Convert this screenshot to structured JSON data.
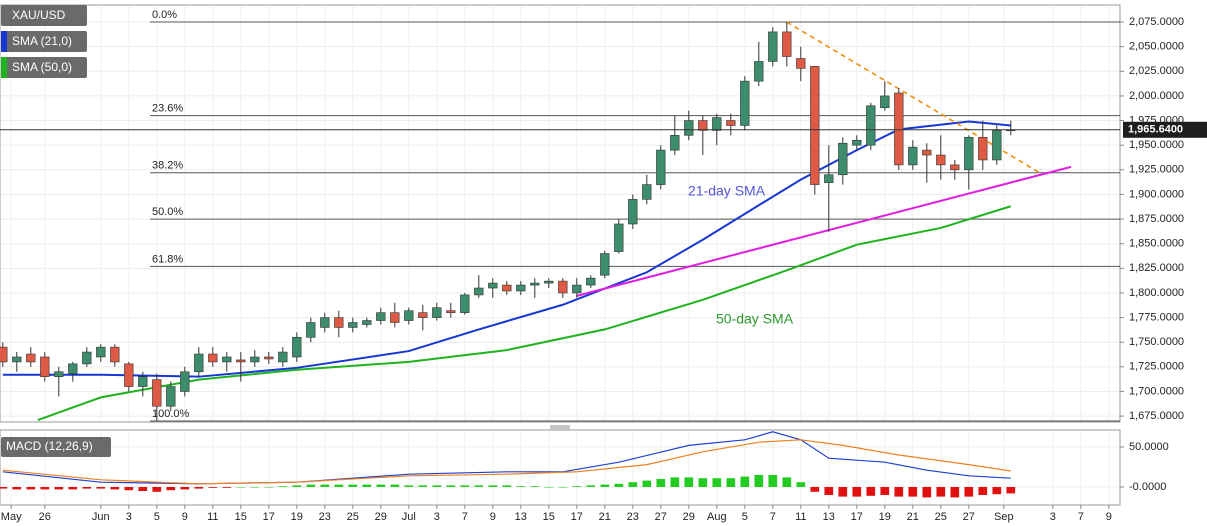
{
  "chart_data": [
    {
      "type": "candlestick",
      "symbol": "XAU/USD",
      "x": [
        0,
        1,
        2,
        3,
        4,
        5,
        6,
        7,
        8,
        9,
        10,
        11,
        12,
        13,
        14,
        15,
        16,
        17,
        18,
        19,
        20,
        21,
        22,
        23,
        24,
        25,
        26,
        27,
        28,
        29,
        30,
        31,
        32,
        33,
        34,
        35,
        36,
        37,
        38,
        39,
        40,
        41,
        42,
        43,
        44,
        45,
        46,
        47,
        48,
        49,
        50,
        51,
        52,
        53,
        54,
        55,
        56,
        57,
        58,
        59,
        60,
        61,
        62,
        63,
        64,
        65,
        66,
        67,
        68,
        69,
        70,
        71,
        72
      ],
      "open": [
        1745,
        1730,
        1738,
        1735,
        1715,
        1718,
        1728,
        1735,
        1745,
        1728,
        1705,
        1712,
        1685,
        1700,
        1720,
        1738,
        1730,
        1732,
        1730,
        1735,
        1730,
        1735,
        1755,
        1765,
        1775,
        1765,
        1768,
        1772,
        1780,
        1772,
        1780,
        1775,
        1782,
        1780,
        1798,
        1805,
        1808,
        1802,
        1808,
        1810,
        1812,
        1800,
        1808,
        1818,
        1842,
        1870,
        1895,
        1910,
        1945,
        1960,
        1975,
        1965,
        1975,
        1970,
        2015,
        2035,
        2065,
        2038,
        2030,
        1912,
        1920,
        1950,
        1950,
        1988,
        2003,
        1930,
        1945,
        1940,
        1930,
        1925,
        1958,
        1935,
        1965
      ],
      "high": [
        1750,
        1740,
        1745,
        1740,
        1725,
        1730,
        1745,
        1748,
        1748,
        1730,
        1720,
        1718,
        1710,
        1725,
        1745,
        1745,
        1740,
        1740,
        1742,
        1740,
        1745,
        1760,
        1775,
        1780,
        1782,
        1775,
        1775,
        1785,
        1790,
        1785,
        1788,
        1790,
        1790,
        1800,
        1818,
        1815,
        1812,
        1812,
        1815,
        1815,
        1815,
        1815,
        1818,
        1843,
        1875,
        1900,
        1920,
        1950,
        1980,
        1985,
        1980,
        1982,
        1982,
        2020,
        2055,
        2070,
        2075,
        2050,
        2030,
        1950,
        1958,
        1960,
        1993,
        2015,
        2008,
        1955,
        1952,
        1960,
        1935,
        1960,
        1975,
        1970,
        1975
      ],
      "low": [
        1725,
        1720,
        1725,
        1710,
        1695,
        1710,
        1725,
        1730,
        1725,
        1700,
        1695,
        1670,
        1680,
        1695,
        1715,
        1725,
        1720,
        1710,
        1725,
        1728,
        1725,
        1730,
        1750,
        1760,
        1755,
        1760,
        1765,
        1768,
        1765,
        1768,
        1762,
        1772,
        1775,
        1778,
        1795,
        1795,
        1798,
        1798,
        1795,
        1805,
        1795,
        1795,
        1805,
        1815,
        1840,
        1865,
        1890,
        1905,
        1940,
        1955,
        1940,
        1950,
        1960,
        1965,
        2010,
        2030,
        2030,
        2015,
        1900,
        1862,
        1910,
        1945,
        1945,
        1985,
        1925,
        1925,
        1912,
        1915,
        1915,
        1905,
        1925,
        1930,
        1960
      ],
      "close": [
        1730,
        1735,
        1730,
        1715,
        1720,
        1728,
        1740,
        1745,
        1730,
        1705,
        1715,
        1685,
        1705,
        1720,
        1738,
        1730,
        1735,
        1730,
        1735,
        1733,
        1740,
        1755,
        1770,
        1775,
        1765,
        1770,
        1772,
        1780,
        1770,
        1782,
        1775,
        1785,
        1780,
        1798,
        1805,
        1810,
        1802,
        1808,
        1810,
        1812,
        1800,
        1808,
        1815,
        1840,
        1870,
        1895,
        1910,
        1945,
        1960,
        1975,
        1965,
        1978,
        1970,
        2015,
        2035,
        2065,
        2040,
        2028,
        1910,
        1920,
        1952,
        1955,
        1990,
        2000,
        1930,
        1948,
        1940,
        1930,
        1925,
        1958,
        1935,
        1965,
        1965.64
      ],
      "colors": {
        "up": "#3d8d6c",
        "down": "#de5a45"
      },
      "lines": [
        {
          "name": "SMA (21,0)",
          "color": "#1637d4",
          "x": [
            0,
            7,
            14,
            21,
            29,
            34,
            40,
            46,
            50,
            54,
            57,
            61,
            64,
            69,
            72
          ],
          "values": [
            1717,
            1717,
            1715,
            1724,
            1741,
            1763,
            1788,
            1821,
            1854,
            1889,
            1915,
            1945,
            1966,
            1974,
            1970
          ]
        },
        {
          "name": "SMA (50,0)",
          "color": "#1fb31f",
          "x": [
            2.5,
            7,
            14,
            21,
            29,
            36,
            43,
            50,
            56,
            61,
            67,
            72
          ],
          "values": [
            1671,
            1694,
            1712,
            1722,
            1730,
            1742,
            1763,
            1793,
            1823,
            1849,
            1866,
            1888
          ]
        }
      ],
      "trendlines": [
        {
          "color": "#f0900a",
          "dashed": true,
          "x": [
            56,
            74.3
          ],
          "values": [
            2075,
            1920
          ]
        },
        {
          "color": "#e21de2",
          "dashed": false,
          "x": [
            41,
            76.3
          ],
          "values": [
            1797,
            1928
          ]
        }
      ],
      "levels": [
        {
          "label": "0.0%",
          "value": 2075
        },
        {
          "label": "23.6%",
          "value": 1980
        },
        {
          "label": "38.2%",
          "value": 1922
        },
        {
          "label": "50.0%",
          "value": 1875
        },
        {
          "label": "61.8%",
          "value": 1827
        },
        {
          "label": "100.0%",
          "value": 1670
        }
      ],
      "annotations": [
        {
          "text": "21-day SMA",
          "color": "#5555d5"
        },
        {
          "text": "50-day SMA",
          "color": "#2a9a2a"
        }
      ],
      "current_price": {
        "value": 1965.64,
        "label": "1,965.6400"
      },
      "xlim": [
        -0.2,
        79.8
      ],
      "ylim": [
        1669,
        2092.3
      ],
      "yticks": [
        {
          "value": 1675,
          "label": "1,675.0000"
        },
        {
          "value": 1700,
          "label": "1,700.0000"
        },
        {
          "value": 1725,
          "label": "1,725.0000"
        },
        {
          "value": 1750,
          "label": "1,750.0000"
        },
        {
          "value": 1775,
          "label": "1,775.0000"
        },
        {
          "value": 1800,
          "label": "1,800.0000"
        },
        {
          "value": 1825,
          "label": "1,825.0000"
        },
        {
          "value": 1850,
          "label": "1,850.0000"
        },
        {
          "value": 1875,
          "label": "1,875.0000"
        },
        {
          "value": 1900,
          "label": "1,900.0000"
        },
        {
          "value": 1925,
          "label": "1,925.0000"
        },
        {
          "value": 1950,
          "label": "1,950.0000"
        },
        {
          "value": 1975,
          "label": "1,975.0000"
        },
        {
          "value": 2000,
          "label": "2,000.0000"
        },
        {
          "value": 2025,
          "label": "2,025.0000"
        },
        {
          "value": 2050,
          "label": "2,050.0000"
        },
        {
          "value": 2075,
          "label": "2,075.0000"
        }
      ],
      "grid": true
    },
    {
      "type": "macd",
      "title": "MACD (12,26,9)",
      "x": [
        0,
        1,
        2,
        3,
        4,
        5,
        6,
        7,
        8,
        9,
        10,
        11,
        12,
        13,
        14,
        15,
        16,
        17,
        18,
        19,
        20,
        21,
        22,
        23,
        24,
        25,
        26,
        27,
        28,
        29,
        30,
        31,
        32,
        33,
        34,
        35,
        36,
        37,
        38,
        39,
        40,
        41,
        42,
        43,
        44,
        45,
        46,
        47,
        48,
        49,
        50,
        51,
        52,
        53,
        54,
        55,
        56,
        57,
        58,
        59,
        60,
        61,
        62,
        63,
        64,
        65,
        66,
        67,
        68,
        69,
        70,
        71,
        72
      ],
      "histogram": [
        -2,
        -3,
        -3,
        -3,
        -3,
        -3,
        -2,
        -2,
        -3,
        -4,
        -5,
        -6,
        -4,
        -3,
        -2,
        -1,
        -1,
        0,
        0,
        0,
        1,
        2,
        3,
        3,
        3,
        3,
        3,
        3,
        3,
        2,
        2,
        2,
        2,
        2,
        2,
        2,
        2,
        1,
        1,
        0,
        0,
        1,
        2,
        3,
        4,
        6,
        8,
        10,
        12,
        12,
        11,
        11,
        11,
        13,
        15,
        15,
        12,
        6,
        -6,
        -10,
        -12,
        -12,
        -11,
        -10,
        -12,
        -12,
        -13,
        -12,
        -13,
        -12,
        -10,
        -9,
        -8
      ],
      "colors": {
        "up": "#22cc22",
        "down": "#e01010"
      },
      "series": [
        {
          "color": "#2040d0",
          "x": [
            0,
            7,
            14,
            21,
            29,
            36,
            40,
            44,
            49,
            53,
            55,
            57,
            59,
            63,
            66,
            69,
            72
          ],
          "values": [
            19,
            6,
            4,
            6,
            16,
            19,
            19,
            31,
            52,
            59,
            69,
            59,
            36,
            31,
            21,
            14,
            11
          ]
        },
        {
          "color": "#f08020",
          "x": [
            0,
            7,
            14,
            21,
            29,
            36,
            41,
            46,
            50,
            54,
            57,
            60,
            64,
            69,
            72
          ],
          "values": [
            21,
            9,
            4,
            6,
            14,
            16,
            19,
            28,
            44,
            56,
            59,
            52,
            40,
            28,
            20
          ]
        }
      ],
      "xlim": [
        -0.2,
        79.8
      ],
      "ylim": [
        -22.5,
        71.25
      ],
      "yticks": [
        {
          "value": 50,
          "label": "50.0000"
        },
        {
          "value": 0,
          "label": "-0.0000"
        }
      ],
      "xticks": [
        {
          "value": 0.6,
          "label": "May"
        },
        {
          "value": 3,
          "label": "26"
        },
        {
          "value": 7,
          "label": "Jun"
        },
        {
          "value": 9,
          "label": "3"
        },
        {
          "value": 11,
          "label": "5"
        },
        {
          "value": 13,
          "label": "9"
        },
        {
          "value": 15,
          "label": "11"
        },
        {
          "value": 17,
          "label": "15"
        },
        {
          "value": 19,
          "label": "17"
        },
        {
          "value": 21,
          "label": "19"
        },
        {
          "value": 23,
          "label": "23"
        },
        {
          "value": 25,
          "label": "25"
        },
        {
          "value": 27,
          "label": "29"
        },
        {
          "value": 29,
          "label": "Jul"
        },
        {
          "value": 31,
          "label": "3"
        },
        {
          "value": 33,
          "label": "7"
        },
        {
          "value": 35,
          "label": "9"
        },
        {
          "value": 37,
          "label": "13"
        },
        {
          "value": 39,
          "label": "15"
        },
        {
          "value": 41,
          "label": "17"
        },
        {
          "value": 43,
          "label": "21"
        },
        {
          "value": 45,
          "label": "23"
        },
        {
          "value": 47,
          "label": "27"
        },
        {
          "value": 49,
          "label": "29"
        },
        {
          "value": 51,
          "label": "Aug"
        },
        {
          "value": 53,
          "label": "5"
        },
        {
          "value": 55,
          "label": "7"
        },
        {
          "value": 57,
          "label": "11"
        },
        {
          "value": 59,
          "label": "13"
        },
        {
          "value": 61,
          "label": "17"
        },
        {
          "value": 63,
          "label": "19"
        },
        {
          "value": 65,
          "label": "21"
        },
        {
          "value": 67,
          "label": "25"
        },
        {
          "value": 69,
          "label": "27"
        },
        {
          "value": 71.5,
          "label": "Sep"
        },
        {
          "value": 75,
          "label": "3"
        },
        {
          "value": 77,
          "label": "7"
        },
        {
          "value": 79,
          "label": "9"
        }
      ],
      "grid": true
    }
  ]
}
